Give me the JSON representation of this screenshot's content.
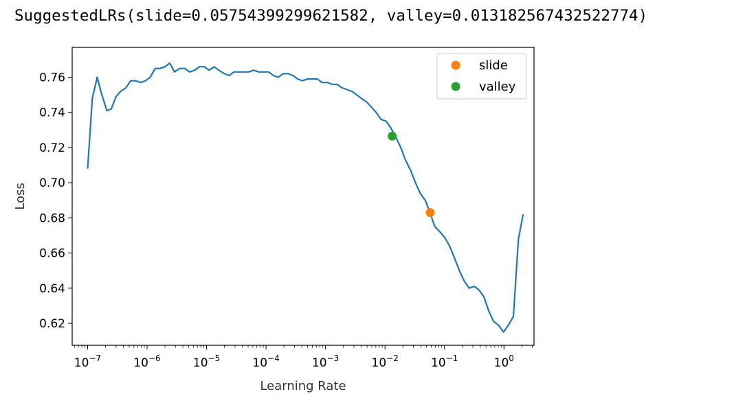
{
  "output_text": "SuggestedLRs(slide=0.05754399299621582, valley=0.013182567432522774)",
  "chart_data": {
    "type": "line",
    "xlabel": "Learning Rate",
    "ylabel": "Loss",
    "xscale": "log",
    "xlim": [
      5.5e-08,
      3.2
    ],
    "ylim": [
      0.6075,
      0.777
    ],
    "yticks": [
      0.62,
      0.64,
      0.66,
      0.68,
      0.7,
      0.72,
      0.74,
      0.76
    ],
    "yticklabels": [
      "0.62",
      "0.64",
      "0.66",
      "0.68",
      "0.70",
      "0.72",
      "0.74",
      "0.76"
    ],
    "xticks_exp": [
      -7,
      -6,
      -5,
      -4,
      -3,
      -2,
      -1,
      0
    ],
    "grid": false,
    "legend_position": "top-right",
    "series": [
      {
        "color": "#1f77b4",
        "x": [
          1e-07,
          1.2e-07,
          1.45e-07,
          1.7e-07,
          2.1e-07,
          2.5e-07,
          3e-07,
          3.6e-07,
          4.4e-07,
          5.3e-07,
          6.4e-07,
          7.8e-07,
          9.4e-07,
          1.13e-06,
          1.37e-06,
          1.65e-06,
          2e-06,
          2.4e-06,
          2.9e-06,
          3.5e-06,
          4.3e-06,
          5.2e-06,
          6.3e-06,
          7.6e-06,
          9.2e-06,
          1.1e-05,
          1.35e-05,
          1.6e-05,
          2e-05,
          2.4e-05,
          2.9e-05,
          3.5e-05,
          4.2e-05,
          5.1e-05,
          6.2e-05,
          7.5e-05,
          9e-05,
          0.00011,
          0.000133,
          0.00016,
          0.000195,
          0.000235,
          0.000285,
          0.00034,
          0.00041,
          0.0005,
          0.0006,
          0.00073,
          0.00088,
          0.00107,
          0.0013,
          0.00155,
          0.0019,
          0.0023,
          0.00275,
          0.00335,
          0.004,
          0.0049,
          0.0059,
          0.0071,
          0.0086,
          0.0104,
          0.0126,
          0.0152,
          0.0184,
          0.022,
          0.027,
          0.0325,
          0.039,
          0.0475,
          0.057,
          0.069,
          0.084,
          0.1,
          0.122,
          0.148,
          0.178,
          0.215,
          0.26,
          0.315,
          0.38,
          0.46,
          0.555,
          0.67,
          0.81,
          0.98,
          1.19,
          1.44,
          1.75,
          2.1
        ],
        "y": [
          0.708,
          0.748,
          0.76,
          0.751,
          0.741,
          0.742,
          0.749,
          0.752,
          0.754,
          0.758,
          0.758,
          0.757,
          0.758,
          0.76,
          0.765,
          0.765,
          0.766,
          0.768,
          0.763,
          0.765,
          0.765,
          0.763,
          0.764,
          0.766,
          0.766,
          0.764,
          0.766,
          0.764,
          0.762,
          0.761,
          0.763,
          0.763,
          0.763,
          0.763,
          0.764,
          0.763,
          0.763,
          0.763,
          0.761,
          0.76,
          0.762,
          0.762,
          0.761,
          0.759,
          0.758,
          0.759,
          0.759,
          0.759,
          0.757,
          0.757,
          0.756,
          0.756,
          0.754,
          0.753,
          0.752,
          0.75,
          0.748,
          0.746,
          0.743,
          0.74,
          0.736,
          0.735,
          0.731,
          0.726,
          0.72,
          0.713,
          0.707,
          0.7,
          0.694,
          0.69,
          0.683,
          0.675,
          0.672,
          0.669,
          0.664,
          0.657,
          0.65,
          0.644,
          0.64,
          0.641,
          0.639,
          0.635,
          0.627,
          0.621,
          0.619,
          0.615,
          0.619,
          0.624,
          0.668,
          0.682
        ]
      }
    ],
    "points": [
      {
        "name": "slide",
        "x": 0.05754399299621582,
        "y": 0.683,
        "color": "#ff7f0e"
      },
      {
        "name": "valley",
        "x": 0.013182567432522774,
        "y": 0.7265,
        "color": "#2ca02c"
      }
    ]
  }
}
